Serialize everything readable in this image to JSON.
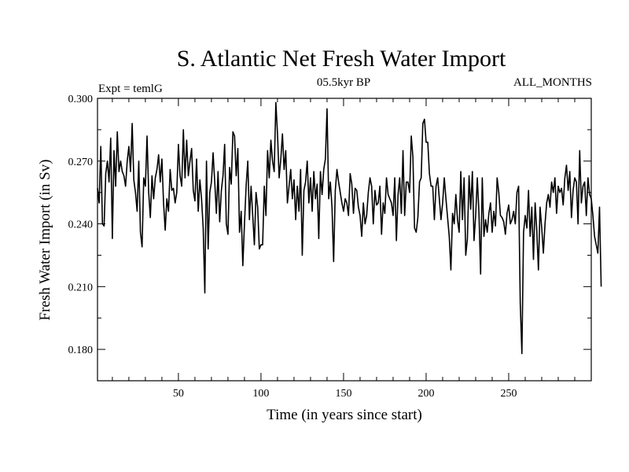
{
  "chart_data": {
    "type": "line",
    "title": "S. Atlantic Net Fresh Water Import",
    "subtitle_left": "Expt = temlG",
    "subtitle_center": "05.5kyr BP",
    "subtitle_right": "ALL_MONTHS",
    "xlabel": "Time (in years since start)",
    "ylabel": "Fresh Water Import (in Sv)",
    "xlim": [
      1,
      300
    ],
    "ylim": [
      0.165,
      0.3
    ],
    "x_major_ticks": [
      50,
      100,
      150,
      200,
      250
    ],
    "x_minor_step": 10,
    "y_major_ticks": [
      0.3,
      0.27,
      0.24,
      0.21,
      0.18
    ],
    "y_tick_labels": [
      "0.300",
      "0.270",
      "0.240",
      "0.210",
      "0.180"
    ],
    "y_minor_step": 0.015,
    "series": [
      {
        "name": "Fresh Water Import",
        "x_start": 1,
        "x_step": 1,
        "values": [
          0.257,
          0.25,
          0.277,
          0.24,
          0.239,
          0.264,
          0.27,
          0.26,
          0.281,
          0.233,
          0.275,
          0.258,
          0.284,
          0.265,
          0.27,
          0.265,
          0.263,
          0.258,
          0.27,
          0.277,
          0.265,
          0.288,
          0.261,
          0.255,
          0.246,
          0.27,
          0.236,
          0.229,
          0.262,
          0.258,
          0.282,
          0.255,
          0.243,
          0.263,
          0.252,
          0.262,
          0.266,
          0.273,
          0.26,
          0.271,
          0.25,
          0.237,
          0.252,
          0.246,
          0.266,
          0.256,
          0.257,
          0.25,
          0.255,
          0.278,
          0.263,
          0.258,
          0.285,
          0.262,
          0.28,
          0.263,
          0.27,
          0.276,
          0.256,
          0.251,
          0.271,
          0.246,
          0.261,
          0.252,
          0.238,
          0.207,
          0.27,
          0.228,
          0.255,
          0.26,
          0.274,
          0.26,
          0.245,
          0.265,
          0.241,
          0.256,
          0.263,
          0.278,
          0.24,
          0.235,
          0.267,
          0.259,
          0.284,
          0.282,
          0.263,
          0.276,
          0.236,
          0.246,
          0.22,
          0.24,
          0.258,
          0.27,
          0.242,
          0.258,
          0.244,
          0.23,
          0.255,
          0.248,
          0.228,
          0.23,
          0.23,
          0.258,
          0.244,
          0.275,
          0.262,
          0.28,
          0.27,
          0.265,
          0.298,
          0.283,
          0.262,
          0.271,
          0.283,
          0.266,
          0.275,
          0.25,
          0.258,
          0.266,
          0.252,
          0.261,
          0.242,
          0.258,
          0.246,
          0.266,
          0.225,
          0.256,
          0.26,
          0.27,
          0.25,
          0.262,
          0.246,
          0.265,
          0.252,
          0.259,
          0.233,
          0.265,
          0.254,
          0.266,
          0.271,
          0.295,
          0.252,
          0.26,
          0.248,
          0.222,
          0.256,
          0.266,
          0.26,
          0.255,
          0.25,
          0.246,
          0.252,
          0.25,
          0.244,
          0.264,
          0.259,
          0.245,
          0.257,
          0.256,
          0.248,
          0.244,
          0.234,
          0.25,
          0.24,
          0.244,
          0.255,
          0.262,
          0.258,
          0.24,
          0.256,
          0.249,
          0.25,
          0.258,
          0.235,
          0.25,
          0.245,
          0.262,
          0.254,
          0.252,
          0.25,
          0.244,
          0.262,
          0.232,
          0.254,
          0.262,
          0.245,
          0.275,
          0.244,
          0.26,
          0.26,
          0.255,
          0.282,
          0.272,
          0.238,
          0.236,
          0.243,
          0.26,
          0.262,
          0.288,
          0.29,
          0.279,
          0.279,
          0.264,
          0.258,
          0.258,
          0.242,
          0.258,
          0.262,
          0.252,
          0.242,
          0.25,
          0.262,
          0.252,
          0.243,
          0.234,
          0.218,
          0.245,
          0.24,
          0.254,
          0.242,
          0.236,
          0.265,
          0.242,
          0.262,
          0.225,
          0.233,
          0.263,
          0.247,
          0.265,
          0.232,
          0.244,
          0.262,
          0.245,
          0.216,
          0.262,
          0.234,
          0.242,
          0.236,
          0.245,
          0.25,
          0.236,
          0.246,
          0.239,
          0.262,
          0.255,
          0.244,
          0.243,
          0.241,
          0.235,
          0.245,
          0.249,
          0.24,
          0.242,
          0.246,
          0.24,
          0.255,
          0.258,
          0.202,
          0.178,
          0.236,
          0.244,
          0.238,
          0.256,
          0.234,
          0.248,
          0.223,
          0.25,
          0.237,
          0.218,
          0.248,
          0.238,
          0.226,
          0.24,
          0.25,
          0.254,
          0.248,
          0.26,
          0.255,
          0.262,
          0.245,
          0.258,
          0.255,
          0.257,
          0.249,
          0.262,
          0.268,
          0.256,
          0.265,
          0.243,
          0.256,
          0.262,
          0.26,
          0.24,
          0.275,
          0.25,
          0.258,
          0.26,
          0.244,
          0.262,
          0.254,
          0.252,
          0.244,
          0.234,
          0.23,
          0.226,
          0.248,
          0.21
        ]
      }
    ]
  }
}
